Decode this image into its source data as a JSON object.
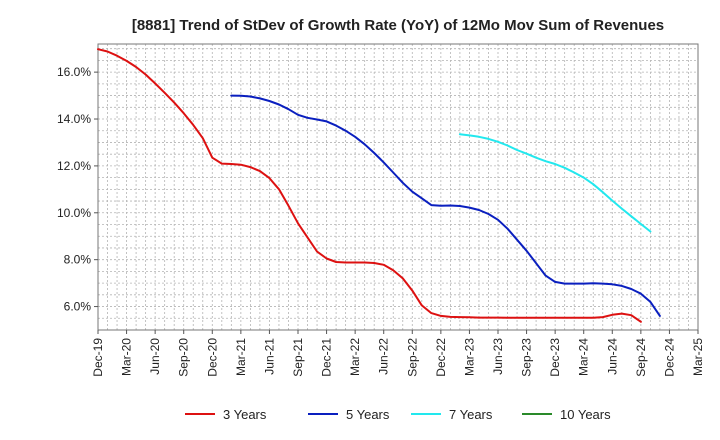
{
  "chart_data": {
    "type": "line",
    "title": "[8881]  Trend of StDev of Growth Rate (YoY) of 12Mo Mov Sum of Revenues",
    "xlabel": "",
    "ylabel": "",
    "ylim": [
      5.0,
      17.2
    ],
    "yticks": [
      6.0,
      8.0,
      10.0,
      12.0,
      14.0,
      16.0
    ],
    "ytick_labels": [
      "6.0%",
      "8.0%",
      "10.0%",
      "12.0%",
      "14.0%",
      "16.0%"
    ],
    "xlim": [
      0,
      63
    ],
    "xtick_positions": [
      0,
      3,
      6,
      9,
      12,
      15,
      18,
      21,
      24,
      27,
      30,
      33,
      36,
      39,
      42,
      45,
      48,
      51,
      54,
      57,
      60,
      63
    ],
    "xtick_labels": [
      "Dec-19",
      "Mar-20",
      "Jun-20",
      "Sep-20",
      "Dec-20",
      "Mar-21",
      "Jun-21",
      "Sep-21",
      "Dec-21",
      "Mar-22",
      "Jun-22",
      "Sep-22",
      "Dec-22",
      "Mar-23",
      "Jun-23",
      "Sep-23",
      "Dec-23",
      "Mar-24",
      "Jun-24",
      "Sep-24",
      "Dec-24",
      "Mar-25"
    ],
    "grid": true,
    "legend_position": "bottom",
    "series": [
      {
        "name": "3 Years",
        "color": "#dd1111",
        "start": 0,
        "values": [
          16.98,
          16.88,
          16.7,
          16.48,
          16.22,
          15.9,
          15.52,
          15.12,
          14.7,
          14.25,
          13.75,
          13.18,
          12.35,
          12.1,
          12.08,
          12.05,
          11.95,
          11.78,
          11.48,
          11.0,
          10.3,
          9.55,
          8.95,
          8.35,
          8.05,
          7.9,
          7.88,
          7.88,
          7.88,
          7.86,
          7.78,
          7.55,
          7.2,
          6.68,
          6.05,
          5.72,
          5.6,
          5.56,
          5.55,
          5.54,
          5.53,
          5.53,
          5.53,
          5.52,
          5.52,
          5.52,
          5.52,
          5.52,
          5.52,
          5.52,
          5.52,
          5.52,
          5.52,
          5.55,
          5.65,
          5.7,
          5.63,
          5.35
        ]
      },
      {
        "name": "5 Years",
        "color": "#0a1fbf",
        "start": 14,
        "values": [
          15.0,
          14.99,
          14.96,
          14.88,
          14.77,
          14.62,
          14.42,
          14.18,
          14.05,
          13.98,
          13.9,
          13.72,
          13.5,
          13.24,
          12.92,
          12.55,
          12.15,
          11.72,
          11.28,
          10.9,
          10.62,
          10.33,
          10.3,
          10.31,
          10.29,
          10.22,
          10.12,
          9.95,
          9.7,
          9.32,
          8.85,
          8.38,
          7.85,
          7.32,
          7.05,
          6.98,
          6.98,
          6.98,
          6.99,
          6.98,
          6.95,
          6.88,
          6.75,
          6.55,
          6.2,
          5.6
        ]
      },
      {
        "name": "7 Years",
        "color": "#22e8ee",
        "start": 38,
        "values": [
          13.35,
          13.3,
          13.24,
          13.15,
          13.03,
          12.87,
          12.68,
          12.52,
          12.35,
          12.2,
          12.08,
          11.92,
          11.72,
          11.5,
          11.22,
          10.88,
          10.52,
          10.18,
          9.85,
          9.52,
          9.2
        ]
      },
      {
        "name": "10 Years",
        "color": "#2a8a2a",
        "start": 0,
        "values": []
      }
    ]
  }
}
